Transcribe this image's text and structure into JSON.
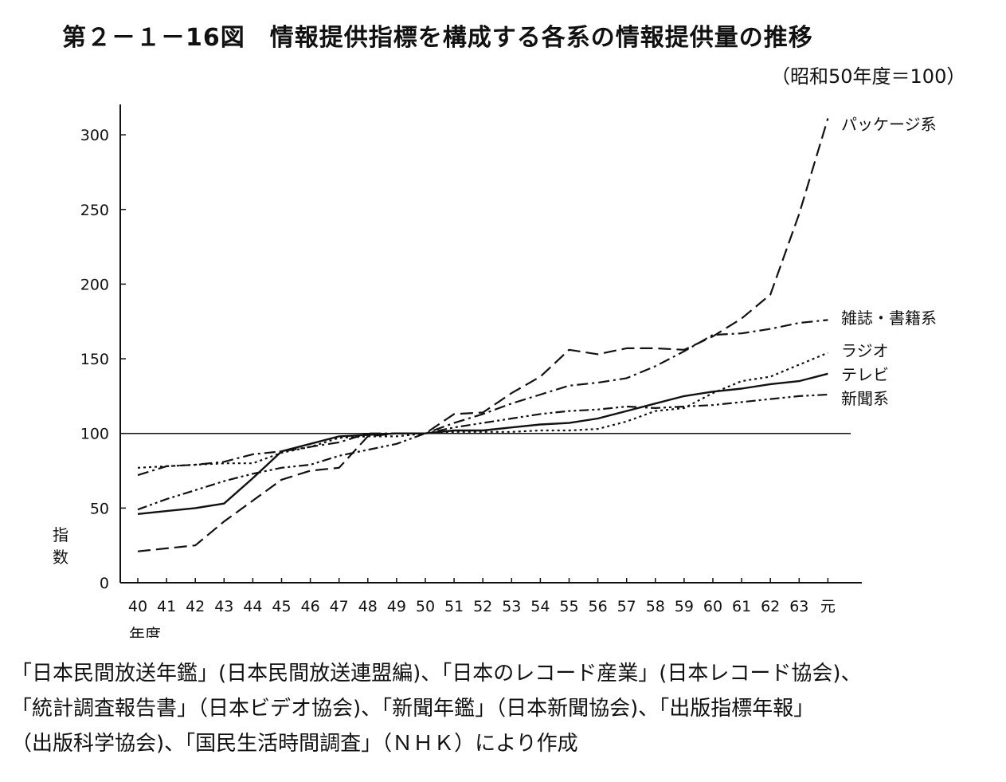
{
  "title": "第２－１－16図　情報提供指標を構成する各系の情報提供量の推移",
  "unit_note": "（昭和50年度＝100）",
  "source_lines": [
    "「日本民間放送年鑑」(日本民間放送連盟編)、「日本のレコード産業」(日本レコード協会)、",
    "「統計調査報告書」（日本ビデオ協会)、「新聞年鑑」（日本新聞協会)、「出版指標年報」",
    "（出版科学協会)、「国民生活時間調査」（ＮＨＫ）により作成"
  ],
  "chart_data": {
    "type": "line",
    "ylabel": "指数",
    "xlabel": "年度",
    "ylim": [
      0,
      320
    ],
    "yticks": [
      0,
      50,
      100,
      150,
      200,
      250,
      300
    ],
    "x": [
      "40",
      "41",
      "42",
      "43",
      "44",
      "45",
      "46",
      "47",
      "48",
      "49",
      "50",
      "51",
      "52",
      "53",
      "54",
      "55",
      "56",
      "57",
      "58",
      "59",
      "60",
      "61",
      "62",
      "63",
      "元"
    ],
    "reference_line": 100,
    "grid": false,
    "legend_placement": "right end labels",
    "series": [
      {
        "name": "パッケージ系",
        "style": "long-dash",
        "values": [
          21,
          23,
          25,
          41,
          55,
          69,
          75,
          77,
          98,
          100,
          100,
          113,
          114,
          127,
          138,
          156,
          153,
          157,
          157,
          156,
          165,
          177,
          193,
          247,
          311
        ]
      },
      {
        "name": "雑誌・書籍系",
        "style": "dash-dot",
        "values": [
          72,
          78,
          79,
          81,
          86,
          88,
          91,
          94,
          100,
          100,
          100,
          107,
          113,
          120,
          126,
          132,
          134,
          137,
          145,
          155,
          166,
          167,
          170,
          174,
          176
        ]
      },
      {
        "name": "ラジオ",
        "style": "dotted",
        "values": [
          77,
          78,
          79,
          80,
          80,
          87,
          91,
          97,
          98,
          98,
          100,
          101,
          101,
          101,
          102,
          102,
          103,
          108,
          115,
          117,
          127,
          135,
          138,
          146,
          154
        ]
      },
      {
        "name": "テレビ",
        "style": "solid",
        "values": [
          46,
          48,
          50,
          53,
          70,
          88,
          93,
          98,
          99,
          100,
          100,
          102,
          102,
          104,
          106,
          107,
          110,
          115,
          120,
          125,
          128,
          130,
          133,
          135,
          140
        ]
      },
      {
        "name": "新聞系",
        "style": "dash-dot-dot",
        "values": [
          49,
          56,
          62,
          68,
          73,
          77,
          79,
          85,
          89,
          93,
          100,
          104,
          107,
          110,
          113,
          115,
          116,
          118,
          117,
          118,
          119,
          121,
          123,
          125,
          126
        ]
      }
    ]
  }
}
